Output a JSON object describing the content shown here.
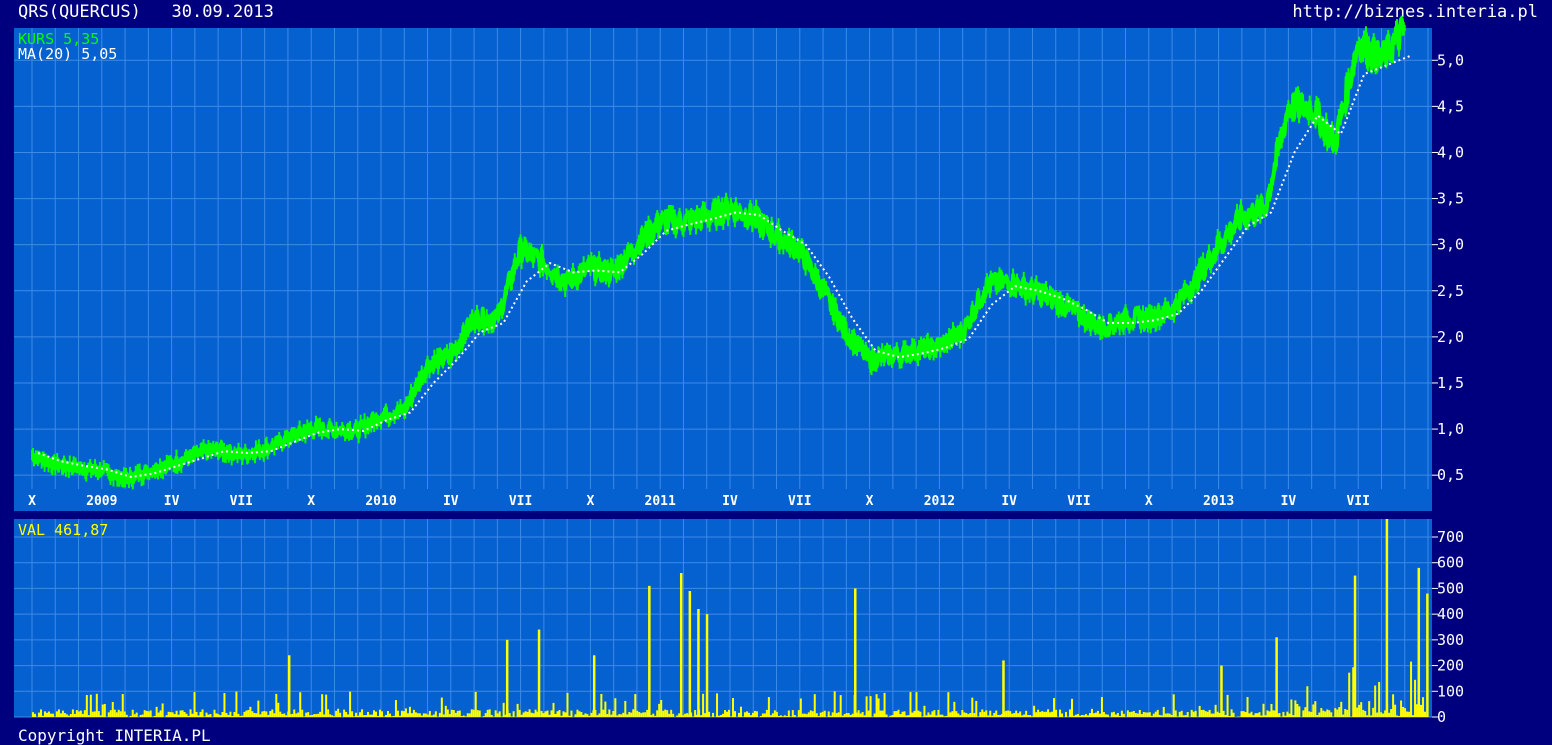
{
  "header": {
    "ticker_label": "QRS(QUERCUS)",
    "date": "30.09.2013",
    "source_url": "http://biznes.interia.pl"
  },
  "footer": {
    "copyright": "Copyright INTERIA.PL"
  },
  "colors": {
    "background": "#00007f",
    "panel": "#0560d0",
    "grid": "#3f8ae6",
    "price_line": "#00ff00",
    "ma_line": "#ffffff",
    "volume_bars": "#ffff00",
    "axis_text": "#ffffff"
  },
  "chart_data": [
    {
      "type": "line",
      "legend_position": "top-left",
      "series": [
        {
          "name": "KURS",
          "current_value": "5,35",
          "color": "#00ff00"
        },
        {
          "name": "MA(20)",
          "current_value": "5,05",
          "color": "#ffffff"
        }
      ],
      "x_tick_labels": [
        "X",
        "2009",
        "IV",
        "VII",
        "X",
        "2010",
        "IV",
        "VII",
        "X",
        "2011",
        "IV",
        "VII",
        "X",
        "2012",
        "IV",
        "VII",
        "X",
        "2013",
        "IV",
        "VII"
      ],
      "y_tick_labels": [
        "0,5",
        "1,0",
        "1,5",
        "2,0",
        "2,5",
        "3,0",
        "3,5",
        "4,0",
        "4,5",
        "5,0"
      ],
      "ylim": [
        0.35,
        5.35
      ],
      "x_range": [
        "2008-10",
        "2013-09"
      ],
      "grid": true,
      "monthly_close": {
        "dates": [
          "2008-10",
          "2008-11",
          "2008-12",
          "2009-01",
          "2009-02",
          "2009-03",
          "2009-04",
          "2009-05",
          "2009-06",
          "2009-07",
          "2009-08",
          "2009-09",
          "2009-10",
          "2009-11",
          "2009-12",
          "2010-01",
          "2010-02",
          "2010-03",
          "2010-04",
          "2010-05",
          "2010-06",
          "2010-07",
          "2010-08",
          "2010-09",
          "2010-10",
          "2010-11",
          "2010-12",
          "2011-01",
          "2011-02",
          "2011-03",
          "2011-04",
          "2011-05",
          "2011-06",
          "2011-07",
          "2011-08",
          "2011-09",
          "2011-10",
          "2011-11",
          "2011-12",
          "2012-01",
          "2012-02",
          "2012-03",
          "2012-04",
          "2012-05",
          "2012-06",
          "2012-07",
          "2012-08",
          "2012-09",
          "2012-10",
          "2012-11",
          "2012-12",
          "2013-01",
          "2013-02",
          "2013-03",
          "2013-04",
          "2013-05",
          "2013-06",
          "2013-07",
          "2013-08",
          "2013-09"
        ],
        "kurs": [
          0.72,
          0.62,
          0.58,
          0.55,
          0.45,
          0.55,
          0.62,
          0.72,
          0.78,
          0.72,
          0.78,
          0.9,
          1.0,
          1.0,
          0.98,
          1.15,
          1.2,
          1.7,
          1.8,
          2.2,
          2.2,
          2.95,
          2.8,
          2.6,
          2.75,
          2.7,
          3.0,
          3.25,
          3.25,
          3.3,
          3.4,
          3.3,
          3.1,
          2.95,
          2.5,
          2.05,
          1.75,
          1.8,
          1.85,
          1.9,
          2.05,
          2.55,
          2.6,
          2.5,
          2.4,
          2.25,
          2.1,
          2.2,
          2.2,
          2.3,
          2.6,
          3.0,
          3.3,
          3.4,
          4.5,
          4.5,
          4.1,
          5.2,
          5.0,
          5.35
        ],
        "ma20": [
          0.74,
          0.65,
          0.6,
          0.56,
          0.48,
          0.52,
          0.6,
          0.68,
          0.76,
          0.74,
          0.76,
          0.86,
          0.96,
          1.0,
          0.98,
          1.1,
          1.18,
          1.5,
          1.75,
          2.05,
          2.15,
          2.6,
          2.8,
          2.7,
          2.72,
          2.7,
          2.9,
          3.15,
          3.22,
          3.28,
          3.35,
          3.32,
          3.15,
          3.0,
          2.65,
          2.2,
          1.85,
          1.78,
          1.82,
          1.88,
          1.98,
          2.35,
          2.55,
          2.5,
          2.42,
          2.3,
          2.15,
          2.15,
          2.18,
          2.25,
          2.5,
          2.85,
          3.2,
          3.35,
          4.0,
          4.4,
          4.2,
          4.85,
          4.95,
          5.05
        ]
      }
    },
    {
      "type": "bar",
      "legend_position": "top-left",
      "series": [
        {
          "name": "VAL",
          "current_value": "461,87",
          "color": "#ffff00"
        }
      ],
      "y_tick_labels": [
        "0",
        "100",
        "200",
        "300",
        "400",
        "500",
        "600",
        "700"
      ],
      "ylim": [
        0,
        770
      ],
      "grid": true,
      "peaks": {
        "dates": [
          "2009-09",
          "2010-06",
          "2010-07",
          "2010-10",
          "2010-12",
          "2011-01",
          "2011-02",
          "2011-02",
          "2011-02",
          "2011-09",
          "2012-03",
          "2013-01",
          "2013-03",
          "2013-06",
          "2013-08",
          "2013-09",
          "2013-09"
        ],
        "values": [
          240,
          300,
          340,
          240,
          510,
          560,
          490,
          420,
          400,
          500,
          220,
          200,
          310,
          550,
          770,
          580,
          480
        ]
      }
    }
  ]
}
